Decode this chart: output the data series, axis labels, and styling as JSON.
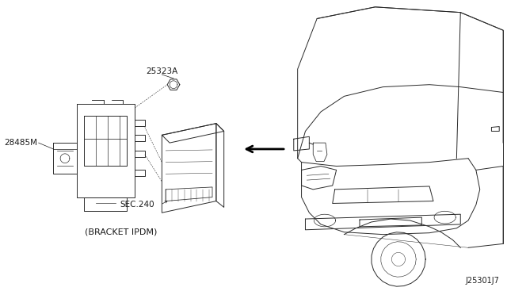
{
  "bg_color": "#ffffff",
  "fig_width": 6.4,
  "fig_height": 3.72,
  "dpi": 100,
  "labels": {
    "part1": "25323A",
    "part2": "28485M",
    "part3": "SEC.240",
    "bracket_label": "(BRACKET IPDM)",
    "diagram_id": "J25301J7"
  },
  "text_color": "#1a1a1a",
  "line_color": "#2a2a2a",
  "arrow_color": "#000000"
}
